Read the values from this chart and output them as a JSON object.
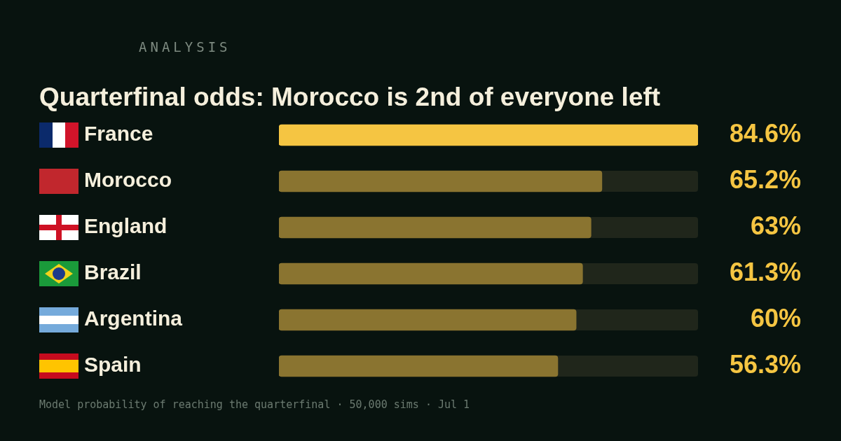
{
  "chart_data": {
    "type": "bar",
    "orientation": "horizontal",
    "title": "Quarterfinal odds: Morocco is 2nd of everyone left",
    "categories": [
      "France",
      "Morocco",
      "England",
      "Brazil",
      "Argentina",
      "Spain"
    ],
    "values": [
      84.6,
      65.2,
      63,
      61.3,
      60,
      56.3
    ],
    "value_labels": [
      "84.6%",
      "65.2%",
      "63%",
      "61.3%",
      "60%",
      "56.3%"
    ],
    "colors": [
      "#f5c542",
      "#8a7430",
      "#8a7430",
      "#8a7430",
      "#8a7430",
      "#8a7430"
    ],
    "xlim": [
      0,
      84.6
    ],
    "tick_labels": "y",
    "legend": false,
    "annotations": [
      "ANALYSIS",
      "Model probability of reaching the quarterfinal · 50,000 sims · Jul 1"
    ]
  }
}
